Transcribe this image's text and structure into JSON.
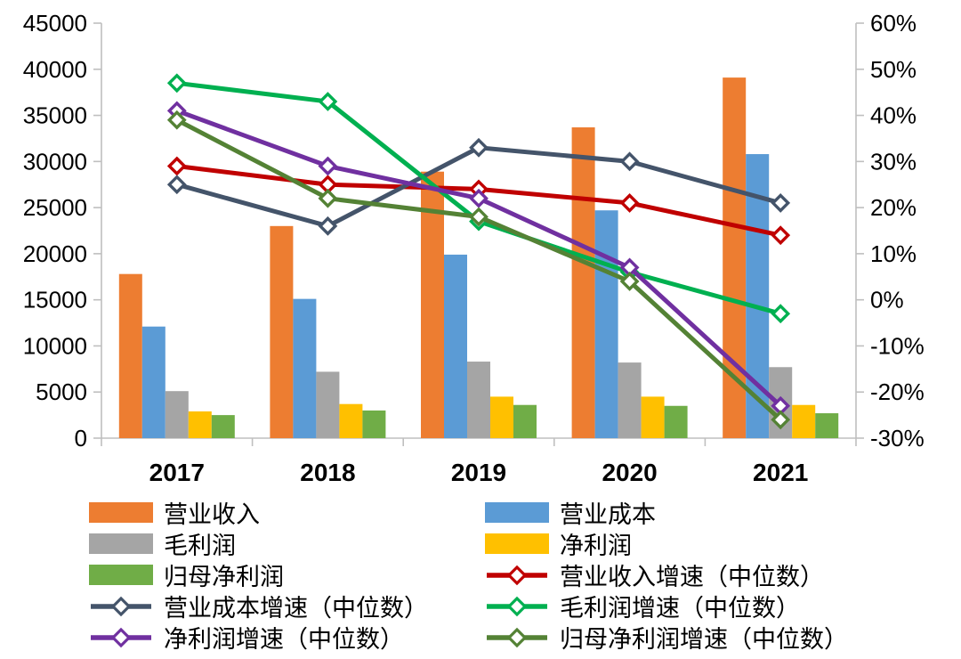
{
  "figure": {
    "background": "#FFFFFF",
    "axis_line_color": "#BFBFBF",
    "text_color": "#000000"
  },
  "chart_data": {
    "type": "bar+line-combo",
    "title": "",
    "grid": false,
    "legend_position": "bottom",
    "categories": [
      "2017",
      "2018",
      "2019",
      "2020",
      "2021"
    ],
    "left_axis": {
      "min": 0,
      "max": 45000,
      "step": 5000,
      "ticks": [
        "0",
        "5000",
        "10000",
        "15000",
        "20000",
        "25000",
        "30000",
        "35000",
        "40000",
        "45000"
      ]
    },
    "right_axis": {
      "min": -30,
      "max": 60,
      "step": 10,
      "suffix": "%",
      "ticks": [
        "-30%",
        "-20%",
        "-10%",
        "0%",
        "10%",
        "20%",
        "30%",
        "40%",
        "50%",
        "60%"
      ]
    },
    "bar_series": [
      {
        "name": "营业收入",
        "color": "#ED7D31",
        "values": [
          17800,
          23000,
          28900,
          33700,
          39100
        ]
      },
      {
        "name": "营业成本",
        "color": "#5B9BD5",
        "values": [
          12100,
          15100,
          19900,
          24700,
          30800
        ]
      },
      {
        "name": "毛利润",
        "color": "#A5A5A5",
        "values": [
          5100,
          7200,
          8300,
          8200,
          7700
        ]
      },
      {
        "name": "净利润",
        "color": "#FFC000",
        "values": [
          2900,
          3700,
          4500,
          4500,
          3600
        ]
      },
      {
        "name": "归母净利润",
        "color": "#70AD47",
        "values": [
          2500,
          3000,
          3600,
          3500,
          2700
        ]
      }
    ],
    "line_series": [
      {
        "name": "营业收入增速（中位数）",
        "color": "#C00000",
        "values": [
          29,
          25,
          24,
          21,
          14
        ]
      },
      {
        "name": "营业成本增速（中位数）",
        "color": "#44546A",
        "values": [
          25,
          16,
          33,
          30,
          21
        ]
      },
      {
        "name": "毛利润增速（中位数）",
        "color": "#00B050",
        "values": [
          47,
          43,
          17,
          6,
          -3
        ]
      },
      {
        "name": "净利润增速（中位数）",
        "color": "#7030A0",
        "values": [
          41,
          29,
          22,
          7,
          -23
        ]
      },
      {
        "name": "归母净利润增速（中位数）",
        "color": "#548235",
        "values": [
          39,
          22,
          18,
          4,
          -26
        ]
      }
    ]
  },
  "legend": {
    "order": [
      {
        "kind": "bar",
        "index": 0
      },
      {
        "kind": "bar",
        "index": 1
      },
      {
        "kind": "bar",
        "index": 2
      },
      {
        "kind": "bar",
        "index": 3
      },
      {
        "kind": "bar",
        "index": 4
      },
      {
        "kind": "line",
        "index": 0
      },
      {
        "kind": "line",
        "index": 1
      },
      {
        "kind": "line",
        "index": 2
      },
      {
        "kind": "line",
        "index": 3
      },
      {
        "kind": "line",
        "index": 4
      }
    ]
  }
}
